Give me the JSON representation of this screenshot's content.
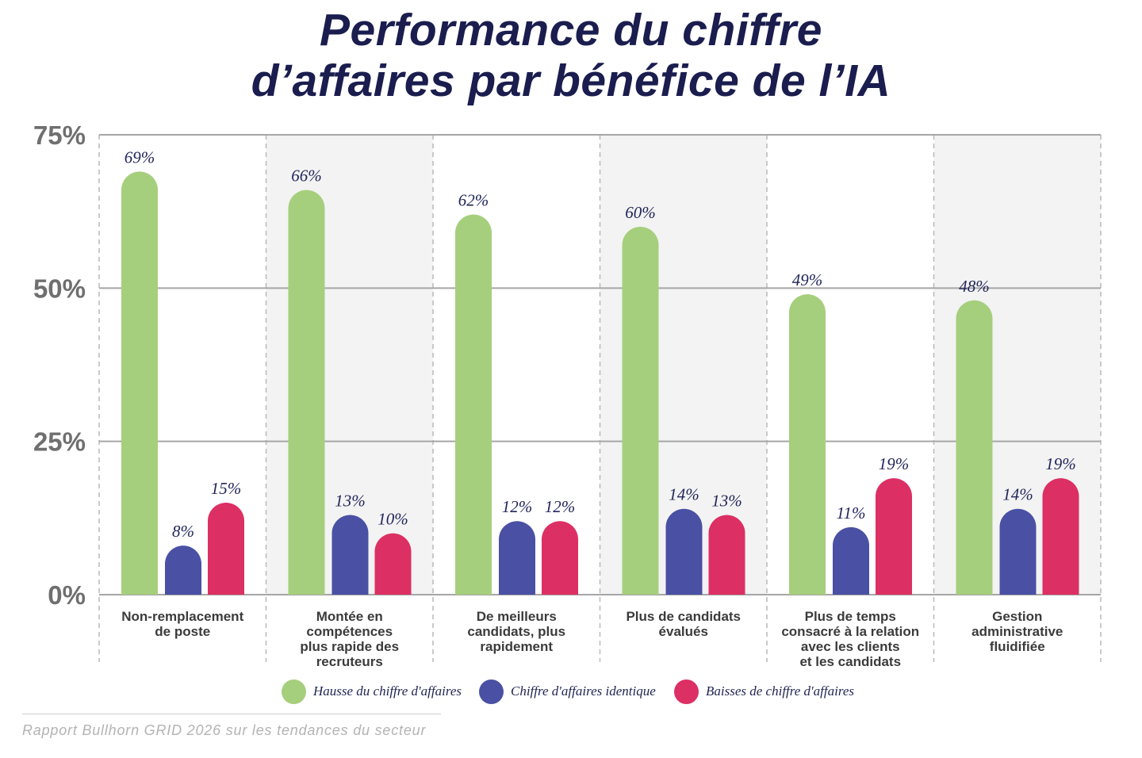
{
  "chart_data": {
    "type": "bar",
    "title": "Performance du chiffre\nd’affaires par bénéfice de l’IA",
    "categories": [
      "Non-remplacement\nde poste",
      "Montée en\ncompétences\nplus rapide des\nrecruteurs",
      "De meilleurs\ncandidats, plus\nrapidement",
      "Plus de candidats\névalués",
      "Plus de temps\nconsacré à la relation\navec les clients\net les candidats",
      "Gestion\nadministrative\nfluidifiée"
    ],
    "series": [
      {
        "name": "Hausse du chiffre d'affaires",
        "color": "#a6cf7d",
        "values": [
          69,
          66,
          62,
          60,
          49,
          48
        ]
      },
      {
        "name": "Chiffre d'affaires identique",
        "color": "#4a50a3",
        "values": [
          8,
          13,
          12,
          14,
          11,
          14
        ]
      },
      {
        "name": "Baisses de chiffre d'affaires",
        "color": "#dc2f63",
        "values": [
          15,
          10,
          12,
          13,
          19,
          19
        ]
      }
    ],
    "value_suffix": "%",
    "yticks": [
      0,
      25,
      50,
      75
    ],
    "ytick_labels": [
      "0%",
      "25%",
      "50%",
      "75%"
    ],
    "ylim": [
      0,
      75
    ],
    "grid": true,
    "legend": "bottom"
  },
  "source": "Rapport Bullhorn GRID 2026 sur les tendances du secteur"
}
